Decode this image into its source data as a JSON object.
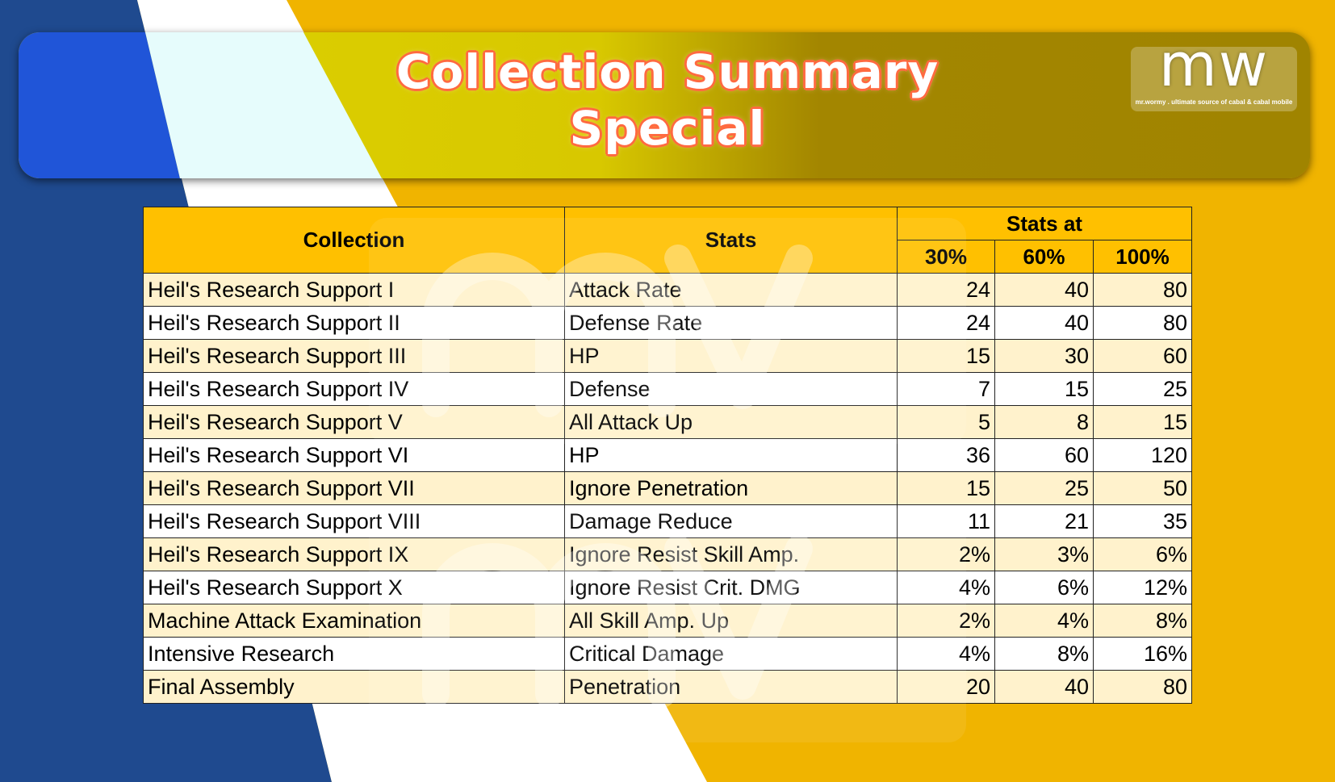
{
  "colors": {
    "blue": "#1f4a8f",
    "yellow": "#f0b400",
    "header": "#ffc000",
    "row_alt": "#fff2cc",
    "title_outline": "#ff6a40"
  },
  "header": {
    "title_line1": "Collection Summary",
    "title_line2": "Special"
  },
  "logo": {
    "mark": "mw",
    "tagline": "mr.wormy . ultimate source of cabal & cabal mobile"
  },
  "table": {
    "headers": {
      "collection": "Collection",
      "stats": "Stats",
      "stats_at": "Stats at",
      "p30": "30%",
      "p60": "60%",
      "p100": "100%"
    },
    "rows": [
      {
        "collection": "Heil's Research Support I",
        "stat": "Attack Rate",
        "v30": "24",
        "v60": "40",
        "v100": "80"
      },
      {
        "collection": "Heil's Research Support II",
        "stat": "Defense Rate",
        "v30": "24",
        "v60": "40",
        "v100": "80"
      },
      {
        "collection": "Heil's Research Support III",
        "stat": "HP",
        "v30": "15",
        "v60": "30",
        "v100": "60"
      },
      {
        "collection": "Heil's Research Support IV",
        "stat": "Defense",
        "v30": "7",
        "v60": "15",
        "v100": "25"
      },
      {
        "collection": "Heil's Research Support V",
        "stat": "All Attack Up",
        "v30": "5",
        "v60": "8",
        "v100": "15"
      },
      {
        "collection": "Heil's Research Support VI",
        "stat": "HP",
        "v30": "36",
        "v60": "60",
        "v100": "120"
      },
      {
        "collection": "Heil's Research Support VII",
        "stat": "Ignore Penetration",
        "v30": "15",
        "v60": "25",
        "v100": "50"
      },
      {
        "collection": "Heil's Research Support VIII",
        "stat": "Damage Reduce",
        "v30": "11",
        "v60": "21",
        "v100": "35"
      },
      {
        "collection": "Heil's Research Support IX",
        "stat": "Ignore Resist Skill Amp.",
        "v30": "2%",
        "v60": "3%",
        "v100": "6%"
      },
      {
        "collection": "Heil's Research Support X",
        "stat": "Ignore Resist Crit. DMG",
        "v30": "4%",
        "v60": "6%",
        "v100": "12%"
      },
      {
        "collection": "Machine Attack Examination",
        "stat": "All Skill Amp. Up",
        "v30": "2%",
        "v60": "4%",
        "v100": "8%"
      },
      {
        "collection": "Intensive Research",
        "stat": "Critical Damage",
        "v30": "4%",
        "v60": "8%",
        "v100": "16%"
      },
      {
        "collection": "Final Assembly",
        "stat": "Penetration",
        "v30": "20",
        "v60": "40",
        "v100": "80"
      }
    ]
  }
}
